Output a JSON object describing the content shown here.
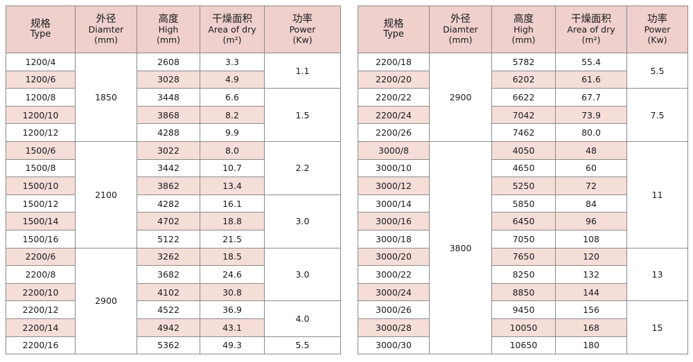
{
  "tables": [
    {
      "headers": {
        "type": {
          "zh": "规格",
          "en": "Type"
        },
        "diameter": {
          "zh": "外径",
          "en": "Diamter",
          "unit": "(mm)"
        },
        "high": {
          "zh": "高度",
          "en": "High",
          "unit": "(mm)"
        },
        "area": {
          "zh": "干燥面积",
          "en": "Area of dry",
          "unit": "(m²)"
        },
        "power": {
          "zh": "功率",
          "en": "Power",
          "unit": "(Kw)"
        }
      },
      "rows": [
        {
          "type": "1200/4",
          "high": "2608",
          "area": "3.3"
        },
        {
          "type": "1200/6",
          "high": "3028",
          "area": "4.9"
        },
        {
          "type": "1200/8",
          "high": "3448",
          "area": "6.6"
        },
        {
          "type": "1200/10",
          "high": "3868",
          "area": "8.2"
        },
        {
          "type": "1200/12",
          "high": "4288",
          "area": "9.9"
        },
        {
          "type": "1500/6",
          "high": "3022",
          "area": "8.0"
        },
        {
          "type": "1500/8",
          "high": "3442",
          "area": "10.7"
        },
        {
          "type": "1500/10",
          "high": "3862",
          "area": "13.4"
        },
        {
          "type": "1500/12",
          "high": "4282",
          "area": "16.1"
        },
        {
          "type": "1500/14",
          "high": "4702",
          "area": "18.8"
        },
        {
          "type": "1500/16",
          "high": "5122",
          "area": "21.5"
        },
        {
          "type": "2200/6",
          "high": "3262",
          "area": "18.5"
        },
        {
          "type": "2200/8",
          "high": "3682",
          "area": "24.6"
        },
        {
          "type": "2200/10",
          "high": "4102",
          "area": "30.8"
        },
        {
          "type": "2200/12",
          "high": "4522",
          "area": "36.9"
        },
        {
          "type": "2200/14",
          "high": "4942",
          "area": "43.1"
        },
        {
          "type": "2200/16",
          "high": "5362",
          "area": "49.3"
        }
      ],
      "diameter_groups": [
        {
          "value": "1850",
          "rows": 5
        },
        {
          "value": "2100",
          "rows": 6
        },
        {
          "value": "2900",
          "rows": 6
        }
      ],
      "power_groups": [
        {
          "value": "1.1",
          "rows": 2
        },
        {
          "value": "1.5",
          "rows": 3
        },
        {
          "value": "2.2",
          "rows": 3
        },
        {
          "value": "3.0",
          "rows": 3
        },
        {
          "value": "3.0",
          "rows": 3
        },
        {
          "value": "4.0",
          "rows": 2
        },
        {
          "value": "5.5",
          "rows": 1
        }
      ]
    },
    {
      "headers": {
        "type": {
          "zh": "规格",
          "en": "Type"
        },
        "diameter": {
          "zh": "外径",
          "en": "Diamter",
          "unit": "(mm)"
        },
        "high": {
          "zh": "高度",
          "en": "High",
          "unit": "(mm)"
        },
        "area": {
          "zh": "干燥面积",
          "en": "Area of dry",
          "unit": "(m²)"
        },
        "power": {
          "zh": "功率",
          "en": "Power",
          "unit": "(Kw)"
        }
      },
      "rows": [
        {
          "type": "2200/18",
          "high": "5782",
          "area": "55.4"
        },
        {
          "type": "2200/20",
          "high": "6202",
          "area": "61.6"
        },
        {
          "type": "2200/22",
          "high": "6622",
          "area": "67.7"
        },
        {
          "type": "2200/24",
          "high": "7042",
          "area": "73.9"
        },
        {
          "type": "2200/26",
          "high": "7462",
          "area": "80.0"
        },
        {
          "type": "3000/8",
          "high": "4050",
          "area": "48"
        },
        {
          "type": "3000/10",
          "high": "4650",
          "area": "60"
        },
        {
          "type": "3000/12",
          "high": "5250",
          "area": "72"
        },
        {
          "type": "3000/14",
          "high": "5850",
          "area": "84"
        },
        {
          "type": "3000/16",
          "high": "6450",
          "area": "96"
        },
        {
          "type": "3000/18",
          "high": "7050",
          "area": "108"
        },
        {
          "type": "3000/20",
          "high": "7650",
          "area": "120"
        },
        {
          "type": "3000/22",
          "high": "8250",
          "area": "132"
        },
        {
          "type": "3000/24",
          "high": "8850",
          "area": "144"
        },
        {
          "type": "3000/26",
          "high": "9450",
          "area": "156"
        },
        {
          "type": "3000/28",
          "high": "10050",
          "area": "168"
        },
        {
          "type": "3000/30",
          "high": "10650",
          "area": "180"
        }
      ],
      "diameter_groups": [
        {
          "value": "2900",
          "rows": 5
        },
        {
          "value": "3800",
          "rows": 12
        }
      ],
      "power_groups": [
        {
          "value": "5.5",
          "rows": 2
        },
        {
          "value": "7.5",
          "rows": 3
        },
        {
          "value": "11",
          "rows": 6
        },
        {
          "value": "13",
          "rows": 3
        },
        {
          "value": "15",
          "rows": 3
        }
      ]
    }
  ]
}
